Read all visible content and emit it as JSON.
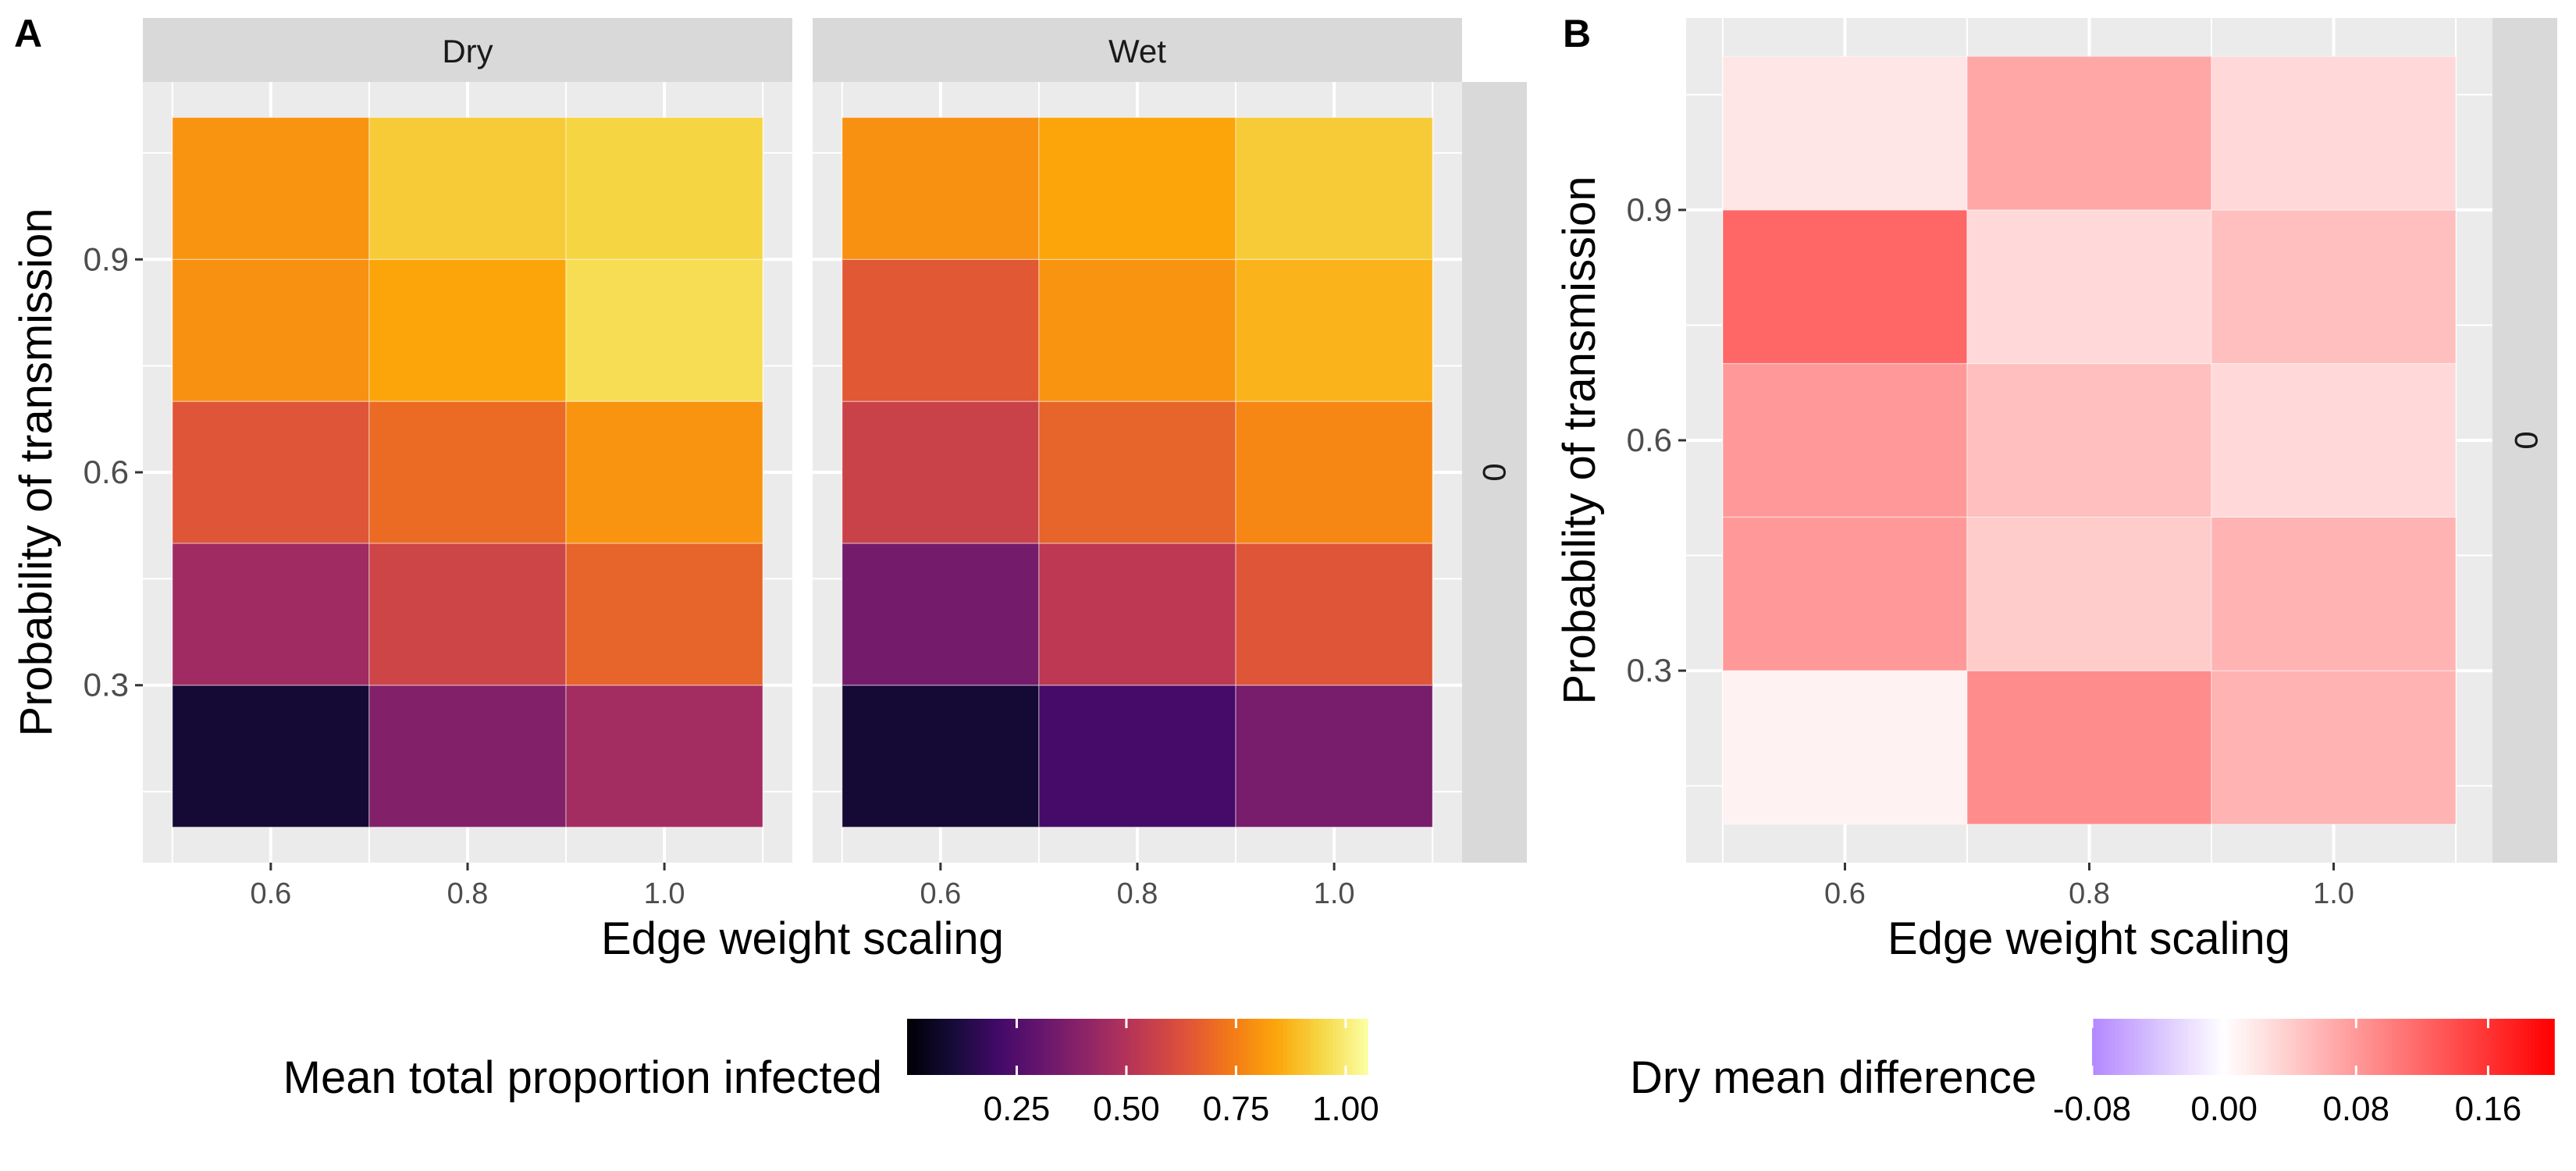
{
  "chart_data": [
    {
      "type": "heatmap",
      "panel_label": "A",
      "facets": [
        "Dry",
        "Wet"
      ],
      "row_strip": "0",
      "xlabel": "Edge weight scaling",
      "ylabel": "Probability of transmission",
      "x_ticks": [
        "0.6",
        "0.8",
        "1.0"
      ],
      "y_ticks": [
        "0.3",
        "0.6",
        "0.9"
      ],
      "x_centers": [
        0.6,
        0.8,
        1.0
      ],
      "x_edges": [
        0.5,
        0.7,
        0.9,
        1.1
      ],
      "y_edges": [
        0.1,
        0.3,
        0.5,
        0.7,
        0.9,
        1.1
      ],
      "xlim": [
        0.47,
        1.13
      ],
      "ylim": [
        0.05,
        1.15
      ],
      "values": {
        "Dry": [
          [
            0.1,
            0.38,
            0.46
          ],
          [
            0.45,
            0.58,
            0.68
          ],
          [
            0.64,
            0.7,
            0.8
          ],
          [
            0.79,
            0.84,
            0.96
          ],
          [
            0.8,
            0.92,
            0.94
          ]
        ],
        "Wet": [
          [
            0.1,
            0.22,
            0.35
          ],
          [
            0.34,
            0.53,
            0.64
          ],
          [
            0.57,
            0.68,
            0.77
          ],
          [
            0.65,
            0.8,
            0.87
          ],
          [
            0.79,
            0.84,
            0.92
          ]
        ]
      },
      "legend": {
        "title": "Mean total proportion infected",
        "ticks": [
          "0.25",
          "0.50",
          "0.75",
          "1.00"
        ],
        "tick_values": [
          0.25,
          0.5,
          0.75,
          1.0
        ],
        "range": [
          0.0,
          1.05
        ],
        "colormap": "inferno",
        "position": "bottom"
      }
    },
    {
      "type": "heatmap",
      "panel_label": "B",
      "row_strip": "0",
      "xlabel": "Edge weight scaling",
      "ylabel": "Probability of transmission",
      "x_ticks": [
        "0.6",
        "0.8",
        "1.0"
      ],
      "y_ticks": [
        "0.3",
        "0.6",
        "0.9"
      ],
      "x_centers": [
        0.6,
        0.8,
        1.0
      ],
      "x_edges": [
        0.5,
        0.7,
        0.9,
        1.1
      ],
      "y_edges": [
        0.1,
        0.3,
        0.5,
        0.7,
        0.9,
        1.1
      ],
      "xlim": [
        0.47,
        1.13
      ],
      "ylim": [
        0.05,
        1.15
      ],
      "values": [
        [
          0.01,
          0.09,
          0.06
        ],
        [
          0.08,
          0.04,
          0.06
        ],
        [
          0.08,
          0.05,
          0.03
        ],
        [
          0.12,
          0.03,
          0.05
        ],
        [
          0.02,
          0.07,
          0.03
        ]
      ],
      "legend": {
        "title": "Dry mean difference",
        "ticks": [
          "-0.08",
          "0.00",
          "0.08",
          "0.16"
        ],
        "tick_values": [
          -0.08,
          0.0,
          0.08,
          0.16
        ],
        "range": [
          -0.08,
          0.2
        ],
        "low_color": "#b388ff",
        "mid_color": "#ffffff",
        "high_color": "#ff0000",
        "position": "bottom"
      }
    }
  ]
}
